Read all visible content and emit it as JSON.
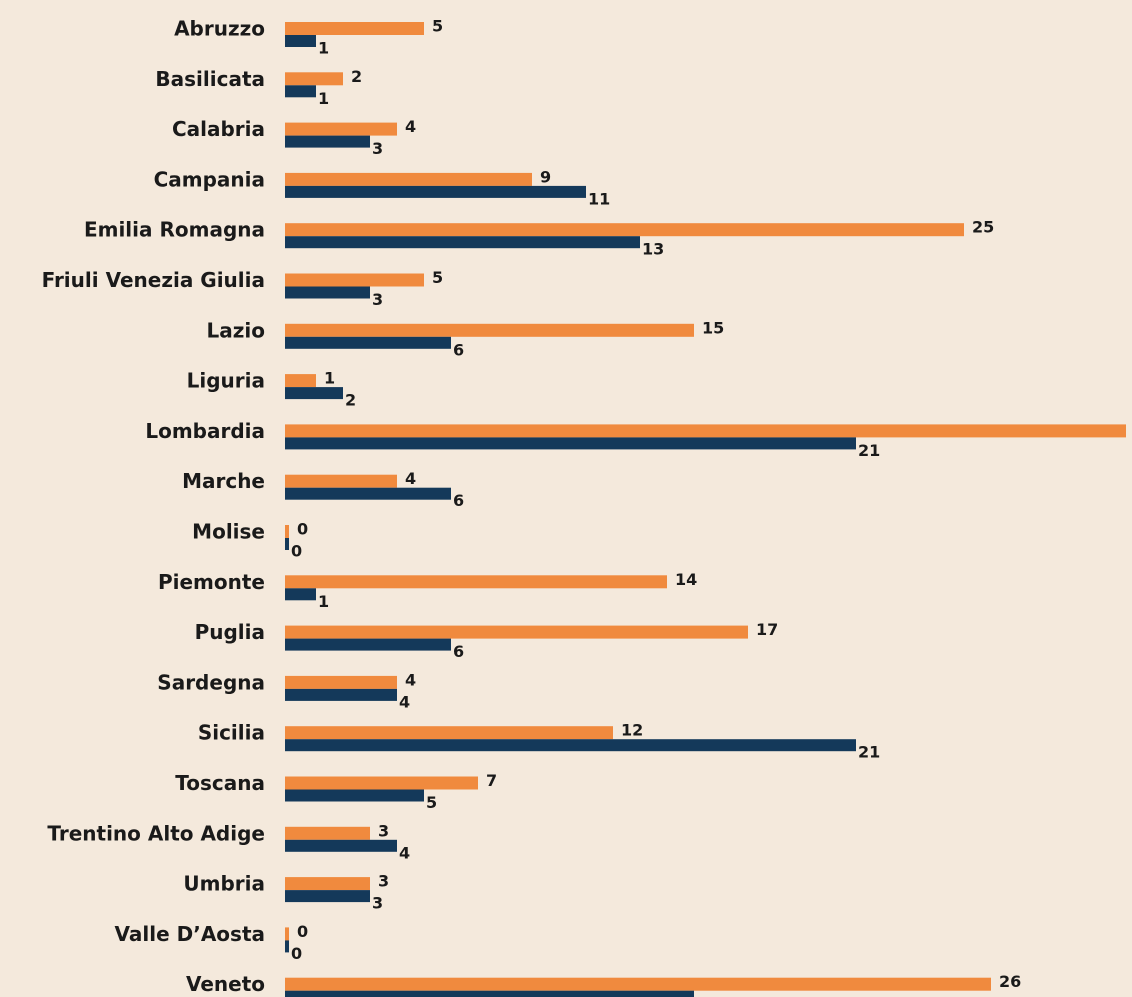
{
  "chart_data": {
    "type": "bar",
    "orientation": "horizontal",
    "categories": [
      "Abruzzo",
      "Basilicata",
      "Calabria",
      "Campania",
      "Emilia Romagna",
      "Friuli Venezia Giulia",
      "Lazio",
      "Liguria",
      "Lombardia",
      "Marche",
      "Molise",
      "Piemonte",
      "Puglia",
      "Sardegna",
      "Sicilia",
      "Toscana",
      "Trentino Alto Adige",
      "Umbria",
      "Valle D’Aosta",
      "Veneto"
    ],
    "series": [
      {
        "color": "#f08a3e",
        "values": [
          5,
          2,
          4,
          9,
          25,
          5,
          15,
          1,
          31,
          4,
          0,
          14,
          17,
          4,
          12,
          7,
          3,
          3,
          0,
          26
        ]
      },
      {
        "color": "#14395a",
        "values": [
          1,
          1,
          3,
          11,
          13,
          3,
          6,
          2,
          21,
          6,
          0,
          1,
          6,
          4,
          21,
          5,
          4,
          3,
          0,
          15
        ]
      }
    ]
  }
}
